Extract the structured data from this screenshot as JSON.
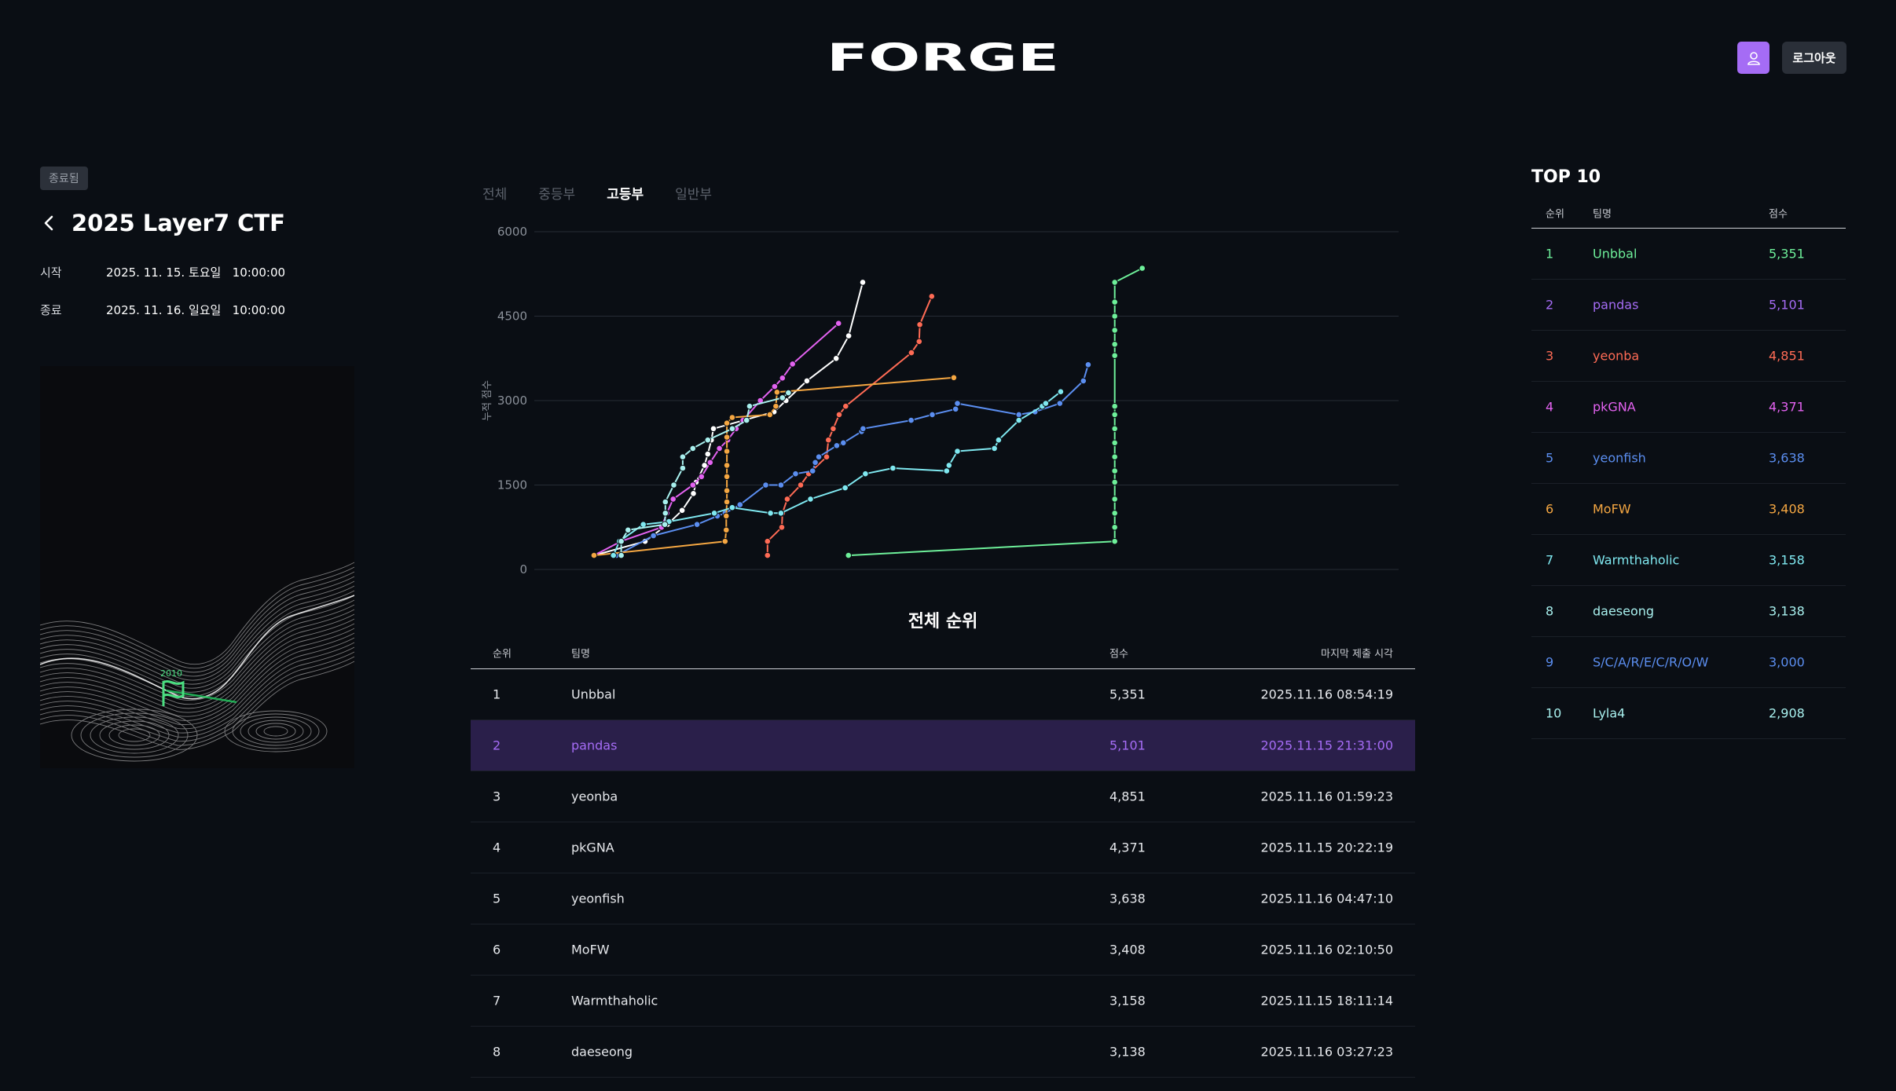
{
  "header": {
    "logo": "FORGE",
    "logout_label": "로그아웃"
  },
  "contest": {
    "status": "종료됨",
    "title": "2025 Layer7 CTF",
    "start_label": "시작",
    "start_value": "2025. 11. 15. 토요일   10:00:00",
    "end_label": "종료",
    "end_value": "2025. 11. 16. 일요일   10:00:00",
    "flag_label": "2010"
  },
  "tabs": [
    {
      "label": "전체",
      "active": false
    },
    {
      "label": "중등부",
      "active": false
    },
    {
      "label": "고등부",
      "active": true
    },
    {
      "label": "일반부",
      "active": false
    }
  ],
  "chart_data": {
    "type": "line",
    "ylabel": "누적 점수",
    "ylim": [
      0,
      6000
    ],
    "yticks": [
      0,
      1500,
      3000,
      4500,
      6000
    ],
    "grid": true,
    "series": [
      {
        "color": "#ffffff",
        "values": [
          [
            0,
            250
          ],
          [
            0.0855,
            500
          ],
          [
            0.123,
            800
          ],
          [
            0.1475,
            1050
          ],
          [
            0.1665,
            1350
          ],
          [
            0.171,
            1550
          ],
          [
            0.185,
            1850
          ],
          [
            0.1905,
            2050
          ],
          [
            0.1965,
            2300
          ],
          [
            0.2,
            2500
          ],
          [
            0.3015,
            2800
          ],
          [
            0.3215,
            3000
          ],
          [
            0.3565,
            3350
          ],
          [
            0.4055,
            3750
          ],
          [
            0.4265,
            4150
          ],
          [
            0.45,
            5101
          ]
        ]
      },
      {
        "color": "#6ef09a",
        "values": [
          [
            0.426,
            250
          ],
          [
            0.872,
            500
          ],
          [
            0.872,
            750
          ],
          [
            0.872,
            1000
          ],
          [
            0.872,
            1250
          ],
          [
            0.872,
            1550
          ],
          [
            0.872,
            1750
          ],
          [
            0.872,
            2000
          ],
          [
            0.872,
            2250
          ],
          [
            0.872,
            2500
          ],
          [
            0.872,
            2750
          ],
          [
            0.872,
            2900
          ],
          [
            0.872,
            3800
          ],
          [
            0.872,
            4000
          ],
          [
            0.872,
            4250
          ],
          [
            0.872,
            4500
          ],
          [
            0.872,
            4750
          ],
          [
            0.872,
            5101
          ],
          [
            0.918,
            5351
          ]
        ]
      },
      {
        "color": "#ff6b55",
        "values": [
          [
            0.2905,
            250
          ],
          [
            0.2905,
            500
          ],
          [
            0.3145,
            750
          ],
          [
            0.3155,
            1000
          ],
          [
            0.3235,
            1250
          ],
          [
            0.346,
            1500
          ],
          [
            0.3595,
            1700
          ],
          [
            0.3895,
            2000
          ],
          [
            0.3925,
            2300
          ],
          [
            0.4005,
            2500
          ],
          [
            0.4105,
            2750
          ],
          [
            0.4215,
            2900
          ],
          [
            0.5315,
            3850
          ],
          [
            0.5445,
            4050
          ],
          [
            0.5455,
            4350
          ],
          [
            0.5655,
            4851
          ]
        ]
      },
      {
        "color": "#e362f0",
        "values": [
          [
            0,
            250
          ],
          [
            0.045,
            500
          ],
          [
            0.113,
            750
          ],
          [
            0.122,
            1000
          ],
          [
            0.1325,
            1250
          ],
          [
            0.1655,
            1500
          ],
          [
            0.18,
            1650
          ],
          [
            0.1945,
            1900
          ],
          [
            0.21,
            2150
          ],
          [
            0.224,
            2300
          ],
          [
            0.238,
            2500
          ],
          [
            0.2495,
            2650
          ],
          [
            0.2785,
            3000
          ],
          [
            0.3025,
            3250
          ],
          [
            0.3155,
            3400
          ],
          [
            0.3325,
            3650
          ],
          [
            0.4095,
            4371
          ]
        ]
      },
      {
        "color": "#5b8ef0",
        "values": [
          [
            0.0375,
            250
          ],
          [
            0.0995,
            600
          ],
          [
            0.1725,
            800
          ],
          [
            0.2065,
            950
          ],
          [
            0.2195,
            1000
          ],
          [
            0.2445,
            1150
          ],
          [
            0.2875,
            1500
          ],
          [
            0.313,
            1500
          ],
          [
            0.3375,
            1700
          ],
          [
            0.366,
            1750
          ],
          [
            0.3705,
            1900
          ],
          [
            0.3765,
            2000
          ],
          [
            0.4065,
            2200
          ],
          [
            0.4175,
            2250
          ],
          [
            0.448,
            2450
          ],
          [
            0.4505,
            2500
          ],
          [
            0.531,
            2650
          ],
          [
            0.5665,
            2750
          ],
          [
            0.6055,
            2850
          ],
          [
            0.6085,
            2950
          ],
          [
            0.7115,
            2750
          ],
          [
            0.7385,
            2800
          ],
          [
            0.78,
            2950
          ],
          [
            0.8195,
            3350
          ],
          [
            0.8275,
            3638
          ]
        ]
      },
      {
        "color": "#f5a742",
        "values": [
          [
            0,
            250
          ],
          [
            0.2195,
            500
          ],
          [
            0.2215,
            700
          ],
          [
            0.2215,
            950
          ],
          [
            0.2225,
            1200
          ],
          [
            0.2225,
            1400
          ],
          [
            0.2225,
            1650
          ],
          [
            0.2225,
            1850
          ],
          [
            0.2225,
            2100
          ],
          [
            0.2225,
            2350
          ],
          [
            0.2225,
            2600
          ],
          [
            0.2315,
            2700
          ],
          [
            0.2945,
            2750
          ],
          [
            0.3045,
            2900
          ],
          [
            0.3065,
            3150
          ],
          [
            0.6025,
            3408
          ]
        ]
      },
      {
        "color": "#7fe8f0",
        "values": [
          [
            0.0325,
            250
          ],
          [
            0.0425,
            500
          ],
          [
            0.0825,
            800
          ],
          [
            0.1255,
            850
          ],
          [
            0.2015,
            1000
          ],
          [
            0.2315,
            1100
          ],
          [
            0.2955,
            1000
          ],
          [
            0.313,
            1000
          ],
          [
            0.3625,
            1250
          ],
          [
            0.4205,
            1450
          ],
          [
            0.4545,
            1700
          ],
          [
            0.5005,
            1800
          ],
          [
            0.5905,
            1750
          ],
          [
            0.5945,
            1850
          ],
          [
            0.6085,
            2100
          ],
          [
            0.6705,
            2150
          ],
          [
            0.6775,
            2300
          ],
          [
            0.7115,
            2650
          ],
          [
            0.7505,
            2900
          ],
          [
            0.7565,
            2950
          ],
          [
            0.7815,
            3158
          ]
        ]
      },
      {
        "color": "#a8f0ee",
        "values": [
          [
            0.0455,
            250
          ],
          [
            0.0455,
            500
          ],
          [
            0.057,
            700
          ],
          [
            0.1185,
            800
          ],
          [
            0.1195,
            1000
          ],
          [
            0.1195,
            1200
          ],
          [
            0.1335,
            1500
          ],
          [
            0.1485,
            1800
          ],
          [
            0.1485,
            2000
          ],
          [
            0.1655,
            2150
          ],
          [
            0.1905,
            2300
          ],
          [
            0.2315,
            2500
          ],
          [
            0.2555,
            2650
          ],
          [
            0.2605,
            2900
          ],
          [
            0.3155,
            3050
          ],
          [
            0.3255,
            3138
          ]
        ]
      }
    ]
  },
  "ranking": {
    "title": "전체 순위",
    "columns": [
      "순위",
      "팀명",
      "점수",
      "마지막 제출 시각"
    ],
    "rows": [
      {
        "rank": "1",
        "team": "Unbbal",
        "score": "5,351",
        "time": "2025.11.16 08:54:19"
      },
      {
        "rank": "2",
        "team": "pandas",
        "score": "5,101",
        "time": "2025.11.15 21:31:00"
      },
      {
        "rank": "3",
        "team": "yeonba",
        "score": "4,851",
        "time": "2025.11.16 01:59:23"
      },
      {
        "rank": "4",
        "team": "pkGNA",
        "score": "4,371",
        "time": "2025.11.15 20:22:19"
      },
      {
        "rank": "5",
        "team": "yeonfish",
        "score": "3,638",
        "time": "2025.11.16 04:47:10"
      },
      {
        "rank": "6",
        "team": "MoFW",
        "score": "3,408",
        "time": "2025.11.16 02:10:50"
      },
      {
        "rank": "7",
        "team": "Warmthaholic",
        "score": "3,158",
        "time": "2025.11.15 18:11:14"
      },
      {
        "rank": "8",
        "team": "daeseong",
        "score": "3,138",
        "time": "2025.11.16 03:27:23"
      }
    ],
    "highlight_rank": "2",
    "highlight_color": "#a56cf5"
  },
  "top10": {
    "title": "TOP 10",
    "columns": [
      "순위",
      "팀명",
      "점수"
    ],
    "rows": [
      {
        "rank": "1",
        "team": "Unbbal",
        "score": "5,351",
        "color": "#6ef09a"
      },
      {
        "rank": "2",
        "team": "pandas",
        "score": "5,101",
        "color": "#a56cf5"
      },
      {
        "rank": "3",
        "team": "yeonba",
        "score": "4,851",
        "color": "#ff6b55"
      },
      {
        "rank": "4",
        "team": "pkGNA",
        "score": "4,371",
        "color": "#e362f0"
      },
      {
        "rank": "5",
        "team": "yeonfish",
        "score": "3,638",
        "color": "#5b8ef0"
      },
      {
        "rank": "6",
        "team": "MoFW",
        "score": "3,408",
        "color": "#f5a742"
      },
      {
        "rank": "7",
        "team": "Warmthaholic",
        "score": "3,158",
        "color": "#7fe8f0"
      },
      {
        "rank": "8",
        "team": "daeseong",
        "score": "3,138",
        "color": "#a8f0ee"
      },
      {
        "rank": "9",
        "team": "S/C/A/R/E/C/R/O/W",
        "score": "3,000",
        "color": "#5b8ef0"
      },
      {
        "rank": "10",
        "team": "Lyla4",
        "score": "2,908",
        "color": "#a8f0ee"
      }
    ]
  },
  "icons": {
    "user": "user-icon",
    "back": "chevron-left-icon",
    "flag": "flag-icon"
  }
}
